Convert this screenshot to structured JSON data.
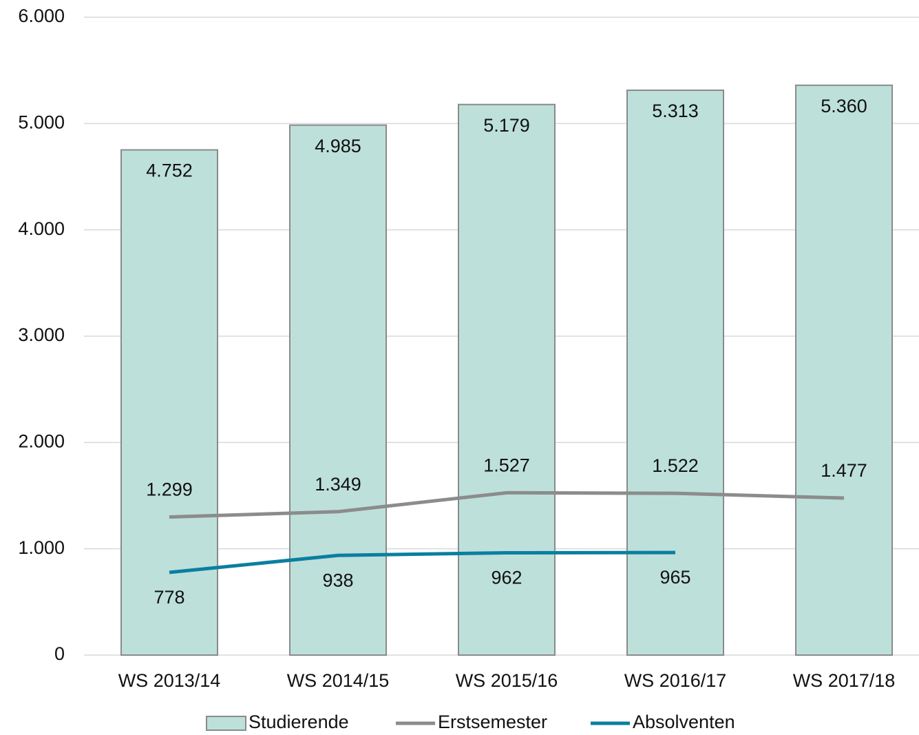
{
  "chart_data": {
    "type": "bar",
    "categories": [
      "WS 2013/14",
      "WS 2014/15",
      "WS 2015/16",
      "WS 2016/17",
      "WS 2017/18"
    ],
    "series": [
      {
        "name": "Studierende",
        "type": "bar",
        "color": "#bde0da",
        "values": [
          4752,
          4985,
          5179,
          5313,
          5360
        ],
        "value_labels": [
          "4.752",
          "4.985",
          "5.179",
          "5.313",
          "5.360"
        ]
      },
      {
        "name": "Erstsemester",
        "type": "line",
        "color": "#8c8c8c",
        "values": [
          1299,
          1349,
          1527,
          1522,
          1477
        ],
        "value_labels": [
          "1.299",
          "1.349",
          "1.527",
          "1.522",
          "1.477"
        ]
      },
      {
        "name": "Absolventen",
        "type": "line",
        "color": "#0a7fa0",
        "values": [
          778,
          938,
          962,
          965,
          null
        ],
        "value_labels": [
          "778",
          "938",
          "962",
          "965",
          null
        ]
      }
    ],
    "ylim": [
      0,
      6000
    ],
    "yticks": [
      0,
      {
        "value": 1000,
        "label": "1.000"
      },
      {
        "value": 2000,
        "label": "2.000"
      },
      {
        "value": 3000,
        "label": "3.000"
      },
      {
        "value": 4000,
        "label": "4.000"
      },
      {
        "value": 5000,
        "label": "5.000"
      },
      {
        "value": 6000,
        "label": "6.000"
      }
    ],
    "grid": true,
    "legend": "bottom"
  }
}
